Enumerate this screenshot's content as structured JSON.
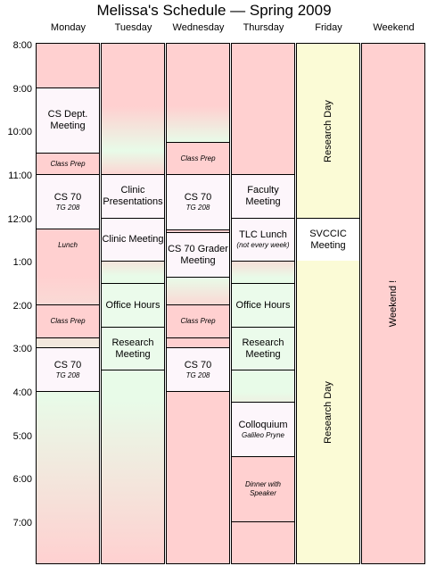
{
  "title": "Melissa's Schedule — Spring 2009",
  "days": [
    "Monday",
    "Tuesday",
    "Wednesday",
    "Thursday",
    "Friday",
    "Weekend"
  ],
  "times": [
    "8:00",
    "9:00",
    "10:00",
    "11:00",
    "12:00",
    "1:00",
    "2:00",
    "3:00",
    "4:00",
    "5:00",
    "6:00",
    "7:00"
  ],
  "colors": {
    "pink": "#ffd0d0",
    "mint": "#e6fbe6",
    "event_bg": "#fdf6fb",
    "cream": "#fbfbd6"
  },
  "events": {
    "monday": [
      {
        "title": "CS Dept. Meeting",
        "sub": ""
      },
      {
        "title": "Class Prep",
        "sub": ""
      },
      {
        "title": "CS 70",
        "sub": "TG 208"
      },
      {
        "title": "Lunch",
        "sub": ""
      },
      {
        "title": "Class Prep",
        "sub": ""
      },
      {
        "title": "CS 70",
        "sub": "TG 208"
      }
    ],
    "tuesday": [
      {
        "title": "Clinic Presentations",
        "sub": ""
      },
      {
        "title": "Clinic Meeting",
        "sub": ""
      },
      {
        "title": "Office Hours",
        "sub": ""
      },
      {
        "title": "Research Meeting",
        "sub": ""
      }
    ],
    "wednesday": [
      {
        "title": "Class Prep",
        "sub": ""
      },
      {
        "title": "CS 70",
        "sub": "TG 208"
      },
      {
        "title": "CS 70 Grader Meeting",
        "sub": ""
      },
      {
        "title": "Class Prep",
        "sub": ""
      },
      {
        "title": "CS 70",
        "sub": "TG 208"
      }
    ],
    "thursday": [
      {
        "title": "Faculty Meeting",
        "sub": ""
      },
      {
        "title": "TLC Lunch",
        "sub": "(not every week)"
      },
      {
        "title": "Office Hours",
        "sub": ""
      },
      {
        "title": "Research Meeting",
        "sub": ""
      },
      {
        "title": "Colloquium",
        "sub": "Galileo Pryne"
      },
      {
        "title": "Dinner with Speaker",
        "sub": ""
      }
    ],
    "friday": [
      {
        "title": "Research Day",
        "sub": ""
      },
      {
        "title": "SVCCIC Meeting",
        "sub": ""
      },
      {
        "title": "Research Day",
        "sub": ""
      }
    ],
    "weekend": [
      {
        "title": "Weekend !",
        "sub": ""
      }
    ]
  }
}
